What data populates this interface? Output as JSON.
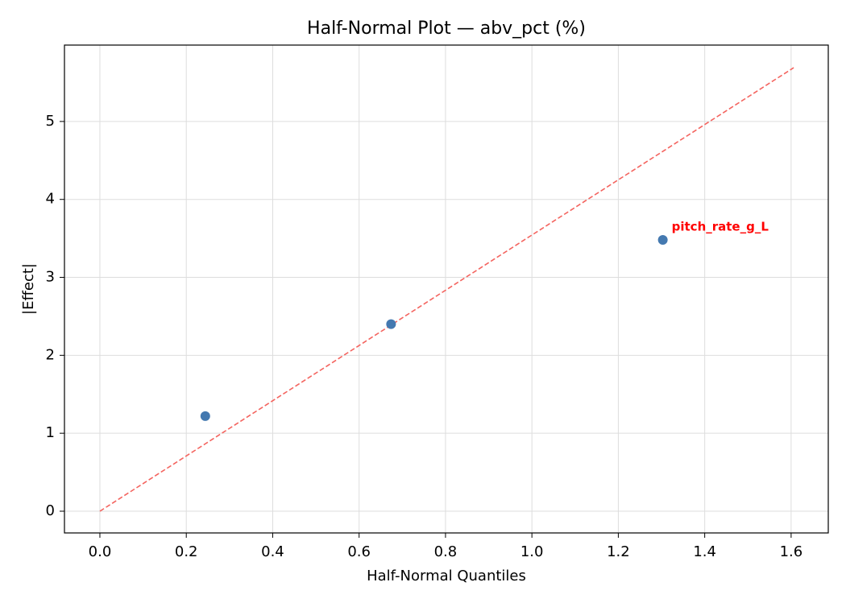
{
  "chart_data": {
    "type": "scatter",
    "title": "Half-Normal Plot — abv_pct (%)",
    "xlabel": "Half-Normal Quantiles",
    "ylabel": "|Effect|",
    "series": [
      {
        "x": [
          0.244,
          0.674,
          1.303
        ],
        "values": [
          1.22,
          2.4,
          3.48
        ],
        "color": "#4479b0"
      }
    ],
    "reference_line": {
      "x": [
        0,
        1.606
      ],
      "values": [
        0,
        5.69
      ],
      "color": "#f4645f"
    },
    "annotations": [
      {
        "text": "pitch_rate_g_L",
        "x": 1.303,
        "y": 3.48,
        "color": "#ff0000"
      }
    ],
    "xlim": [
      -0.082,
      1.686
    ],
    "ylim": [
      -0.279,
      5.98
    ],
    "xticks": [
      {
        "value": 0,
        "label": "0.0"
      },
      0.2,
      0.4,
      0.6,
      0.8,
      {
        "value": 1,
        "label": "1.0"
      },
      1.2,
      1.4,
      1.6
    ],
    "yticks": [
      0,
      1,
      2,
      3,
      4,
      5
    ],
    "grid": true
  }
}
